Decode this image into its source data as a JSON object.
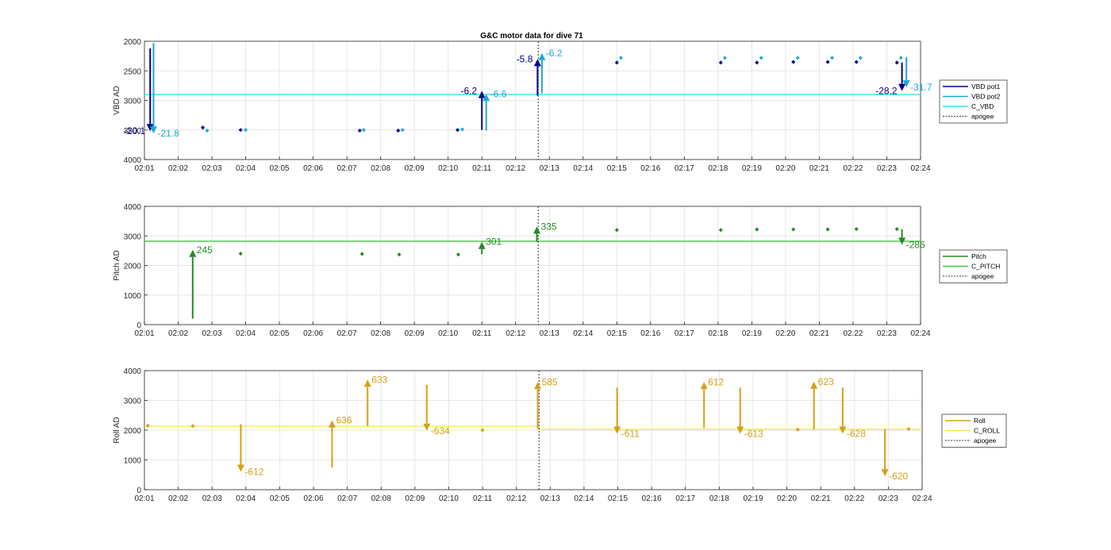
{
  "figure": {
    "title": "G&C motor data for dive 71"
  },
  "x_ticks": [
    "02:01",
    "02:02",
    "02:03",
    "02:04",
    "02:05",
    "02:06",
    "02:07",
    "02:08",
    "02:09",
    "02:10",
    "02:11",
    "02:12",
    "02:13",
    "02:14",
    "02:15",
    "02:16",
    "02:17",
    "02:18",
    "02:19",
    "02:20",
    "02:21",
    "02:22",
    "02:23",
    "02:24"
  ],
  "chart_data": [
    {
      "type": "scatter",
      "title": "G&C motor data for dive 71",
      "ylabel": "VBD AD",
      "xlim": [
        0,
        23
      ],
      "ylim": [
        2000,
        4000
      ],
      "y_reversed": true,
      "yticks": [
        2000,
        2500,
        3000,
        3500,
        4000
      ],
      "grid": true,
      "legend_position": "right",
      "legend": [
        {
          "label": "VBD pot1",
          "color": "#00008b",
          "style": "solid"
        },
        {
          "label": "VBD pot2",
          "color": "#1ea8d8",
          "style": "solid"
        },
        {
          "label": "C_VBD",
          "color": "#3fe0e8",
          "style": "solid"
        },
        {
          "label": "apogee",
          "color": "#333333",
          "style": "dotted"
        }
      ],
      "hlines": [
        {
          "name": "C_VBD",
          "segments": [
            {
              "x0": 0,
              "x1": 23,
              "y": 2900
            }
          ],
          "color": "#3fe0e8"
        }
      ],
      "vline": {
        "name": "apogee",
        "x": 11.67
      },
      "series": [
        {
          "name": "VBD pot1",
          "color": "#00008b",
          "points": [
            [
              1.73,
              3460
            ],
            [
              2.85,
              3500
            ],
            [
              6.38,
              3510
            ],
            [
              7.52,
              3510
            ],
            [
              9.28,
              3500
            ],
            [
              14.0,
              2360
            ],
            [
              17.08,
              2360
            ],
            [
              18.15,
              2360
            ],
            [
              19.23,
              2350
            ],
            [
              20.25,
              2350
            ],
            [
              21.1,
              2350
            ],
            [
              22.3,
              2360
            ]
          ]
        },
        {
          "name": "VBD pot2",
          "color": "#1ea8d8",
          "points": [
            [
              1.86,
              3510
            ],
            [
              3.0,
              3500
            ],
            [
              6.5,
              3500
            ],
            [
              7.65,
              3500
            ],
            [
              9.42,
              3490
            ],
            [
              14.12,
              2280
            ],
            [
              17.2,
              2280
            ],
            [
              18.28,
              2280
            ],
            [
              19.36,
              2280
            ],
            [
              20.38,
              2280
            ],
            [
              21.22,
              2280
            ],
            [
              22.42,
              2280
            ]
          ]
        }
      ],
      "arrows": [
        {
          "series": "VBD pot1",
          "x": 0.17,
          "y0": 2120,
          "y1": 3520,
          "label": "-20.1",
          "color": "#00008b",
          "label_side": "left"
        },
        {
          "series": "VBD pot2",
          "x": 0.27,
          "y0": 2030,
          "y1": 3560,
          "label": "-21.8",
          "color": "#1ea8d8",
          "label_side": "right"
        },
        {
          "series": "VBD pot1",
          "x": 10.0,
          "y0": 3500,
          "y1": 2840,
          "label": "-6.2",
          "color": "#00008b",
          "label_side": "left"
        },
        {
          "series": "VBD pot2",
          "x": 10.13,
          "y0": 3510,
          "y1": 2890,
          "label": "-6.6",
          "color": "#1ea8d8",
          "label_side": "right"
        },
        {
          "series": "VBD pot1",
          "x": 11.65,
          "y0": 2920,
          "y1": 2300,
          "label": "-5.8",
          "color": "#00008b",
          "label_side": "left"
        },
        {
          "series": "VBD pot2",
          "x": 11.78,
          "y0": 2880,
          "y1": 2200,
          "label": "-6.2",
          "color": "#1ea8d8",
          "label_side": "right"
        },
        {
          "series": "VBD pot1",
          "x": 22.45,
          "y0": 2360,
          "y1": 2840,
          "label": "-28.2",
          "color": "#00008b",
          "label_side": "left"
        },
        {
          "series": "VBD pot2",
          "x": 22.58,
          "y0": 2270,
          "y1": 2780,
          "label": "-31.7",
          "color": "#1ea8d8",
          "label_side": "right"
        }
      ]
    },
    {
      "type": "scatter",
      "ylabel": "Pitch AD",
      "xlim": [
        0,
        23
      ],
      "ylim": [
        0,
        4000
      ],
      "yticks": [
        0,
        1000,
        2000,
        3000,
        4000
      ],
      "grid": true,
      "legend_position": "right",
      "legend": [
        {
          "label": "Pitch",
          "color": "#228b22",
          "style": "solid"
        },
        {
          "label": "C_PITCH",
          "color": "#3ec83e",
          "style": "solid"
        },
        {
          "label": "apogee",
          "color": "#333333",
          "style": "dotted"
        }
      ],
      "hlines": [
        {
          "name": "C_PITCH",
          "segments": [
            {
              "x0": 0,
              "x1": 23,
              "y": 2820
            }
          ],
          "color": "#3ec83e"
        }
      ],
      "vline": {
        "name": "apogee",
        "x": 11.67
      },
      "series": [
        {
          "name": "Pitch",
          "color": "#228b22",
          "points": [
            [
              2.85,
              2400
            ],
            [
              6.45,
              2390
            ],
            [
              7.55,
              2370
            ],
            [
              9.3,
              2370
            ],
            [
              14.0,
              3200
            ],
            [
              17.08,
              3200
            ],
            [
              18.15,
              3220
            ],
            [
              19.23,
              3220
            ],
            [
              20.25,
              3220
            ],
            [
              21.1,
              3230
            ],
            [
              22.3,
              3230
            ]
          ]
        }
      ],
      "arrows": [
        {
          "series": "Pitch",
          "x": 1.43,
          "y0": 200,
          "y1": 2530,
          "label": "245",
          "color": "#228b22",
          "label_side": "right"
        },
        {
          "series": "Pitch",
          "x": 10.0,
          "y0": 2380,
          "y1": 2800,
          "label": "301",
          "color": "#228b22",
          "label_side": "right"
        },
        {
          "series": "Pitch",
          "x": 11.63,
          "y0": 2800,
          "y1": 3320,
          "label": "335",
          "color": "#228b22",
          "label_side": "right"
        },
        {
          "series": "Pitch",
          "x": 22.45,
          "y0": 3230,
          "y1": 2700,
          "label": "-286",
          "color": "#228b22",
          "label_side": "right"
        }
      ]
    },
    {
      "type": "scatter",
      "ylabel": "Roll AD",
      "xlim": [
        0,
        23
      ],
      "ylim": [
        0,
        4000
      ],
      "yticks": [
        0,
        1000,
        2000,
        3000,
        4000
      ],
      "grid": true,
      "legend_position": "right",
      "legend": [
        {
          "label": "Roll",
          "color": "#d4a017",
          "style": "solid"
        },
        {
          "label": "C_ROLL",
          "color": "#f2e84b",
          "style": "solid"
        },
        {
          "label": "apogee",
          "color": "#333333",
          "style": "dotted"
        }
      ],
      "hlines": [
        {
          "name": "C_ROLL",
          "segments": [
            {
              "x0": 0,
              "x1": 11.67,
              "y": 2130
            },
            {
              "x0": 11.67,
              "x1": 23,
              "y": 2030
            }
          ],
          "color": "#f2e84b"
        }
      ],
      "vline": {
        "name": "apogee",
        "x": 11.67
      },
      "series": [
        {
          "name": "Roll",
          "color": "#d4a017",
          "points": [
            [
              0.1,
              2150
            ],
            [
              1.43,
              2140
            ],
            [
              10.0,
              2000
            ],
            [
              19.32,
              2020
            ],
            [
              22.6,
              2040
            ]
          ]
        }
      ],
      "arrows": [
        {
          "series": "Roll",
          "x": 2.85,
          "y0": 2200,
          "y1": 600,
          "label": "-612",
          "color": "#d4a017",
          "label_side": "right"
        },
        {
          "series": "Roll",
          "x": 5.55,
          "y0": 750,
          "y1": 2330,
          "label": "636",
          "color": "#d4a017",
          "label_side": "right"
        },
        {
          "series": "Roll",
          "x": 6.6,
          "y0": 2140,
          "y1": 3700,
          "label": "633",
          "color": "#d4a017",
          "label_side": "right"
        },
        {
          "series": "Roll",
          "x": 8.35,
          "y0": 3520,
          "y1": 1980,
          "label": "-634",
          "color": "#d4a017",
          "label_side": "right"
        },
        {
          "series": "Roll",
          "x": 11.63,
          "y0": 2040,
          "y1": 3620,
          "label": "585",
          "color": "#d4a017",
          "label_side": "right"
        },
        {
          "series": "Roll",
          "x": 13.98,
          "y0": 3430,
          "y1": 1880,
          "label": "-611",
          "color": "#d4a017",
          "label_side": "right"
        },
        {
          "series": "Roll",
          "x": 16.55,
          "y0": 2070,
          "y1": 3620,
          "label": "612",
          "color": "#d4a017",
          "label_side": "right"
        },
        {
          "series": "Roll",
          "x": 17.62,
          "y0": 3430,
          "y1": 1880,
          "label": "-613",
          "color": "#d4a017",
          "label_side": "right"
        },
        {
          "series": "Roll",
          "x": 19.8,
          "y0": 2020,
          "y1": 3630,
          "label": "623",
          "color": "#d4a017",
          "label_side": "right"
        },
        {
          "series": "Roll",
          "x": 20.65,
          "y0": 3430,
          "y1": 1880,
          "label": "-628",
          "color": "#d4a017",
          "label_side": "right"
        },
        {
          "series": "Roll",
          "x": 21.9,
          "y0": 2030,
          "y1": 450,
          "label": "-620",
          "color": "#d4a017",
          "label_side": "right"
        }
      ]
    }
  ]
}
